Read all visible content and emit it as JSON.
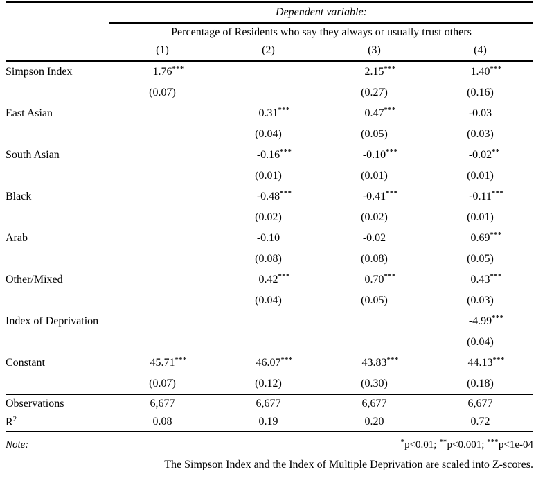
{
  "header": {
    "dependent_variable_label": "Dependent variable:",
    "dependent_variable_description": "Percentage of Residents who say they always or usually trust others",
    "column_numbers": [
      "(1)",
      "(2)",
      "(3)",
      "(4)"
    ]
  },
  "table": {
    "rows": [
      {
        "label": "Simpson Index",
        "cells": [
          {
            "coef": "1.76",
            "stars": "***",
            "se": "(0.07)"
          },
          null,
          {
            "coef": "2.15",
            "stars": "***",
            "se": "(0.27)"
          },
          {
            "coef": "1.40",
            "stars": "***",
            "se": "(0.16)"
          }
        ]
      },
      {
        "label": "East Asian",
        "cells": [
          null,
          {
            "coef": "0.31",
            "stars": "***",
            "se": "(0.04)"
          },
          {
            "coef": "0.47",
            "stars": "***",
            "se": "(0.05)"
          },
          {
            "coef": "-0.03",
            "stars": "",
            "se": "(0.03)"
          }
        ]
      },
      {
        "label": "South Asian",
        "cells": [
          null,
          {
            "coef": "-0.16",
            "stars": "***",
            "se": "(0.01)"
          },
          {
            "coef": "-0.10",
            "stars": "***",
            "se": "(0.01)"
          },
          {
            "coef": "-0.02",
            "stars": "**",
            "se": "(0.01)"
          }
        ]
      },
      {
        "label": "Black",
        "cells": [
          null,
          {
            "coef": "-0.48",
            "stars": "***",
            "se": "(0.02)"
          },
          {
            "coef": "-0.41",
            "stars": "***",
            "se": "(0.02)"
          },
          {
            "coef": "-0.11",
            "stars": "***",
            "se": "(0.01)"
          }
        ]
      },
      {
        "label": "Arab",
        "cells": [
          null,
          {
            "coef": "-0.10",
            "stars": "",
            "se": "(0.08)"
          },
          {
            "coef": "-0.02",
            "stars": "",
            "se": "(0.08)"
          },
          {
            "coef": "0.69",
            "stars": "***",
            "se": "(0.05)"
          }
        ]
      },
      {
        "label": "Other/Mixed",
        "cells": [
          null,
          {
            "coef": "0.42",
            "stars": "***",
            "se": "(0.04)"
          },
          {
            "coef": "0.70",
            "stars": "***",
            "se": "(0.05)"
          },
          {
            "coef": "0.43",
            "stars": "***",
            "se": "(0.03)"
          }
        ]
      },
      {
        "label": "Index of Deprivation",
        "cells": [
          null,
          null,
          null,
          {
            "coef": "-4.99",
            "stars": "***",
            "se": "(0.04)"
          }
        ]
      },
      {
        "label": "Constant",
        "cells": [
          {
            "coef": "45.71",
            "stars": "***",
            "se": "(0.07)"
          },
          {
            "coef": "46.07",
            "stars": "***",
            "se": "(0.12)"
          },
          {
            "coef": "43.83",
            "stars": "***",
            "se": "(0.30)"
          },
          {
            "coef": "44.13",
            "stars": "***",
            "se": "(0.18)"
          }
        ]
      }
    ],
    "summary": [
      {
        "label": "Observations",
        "label_sup": "",
        "values": [
          "6,677",
          "6,677",
          "6,677",
          "6,677"
        ]
      },
      {
        "label": "R",
        "label_sup": "2",
        "values": [
          "0.08",
          "0.19",
          "0.20",
          "0.72"
        ]
      }
    ]
  },
  "notes": {
    "label": "Note:",
    "significance": [
      {
        "stars": "*",
        "text": "p<0.01;"
      },
      {
        "stars": "**",
        "text": "p<0.001;"
      },
      {
        "stars": "***",
        "text": "p<1e-04"
      }
    ],
    "line2": "The Simpson Index and the Index of Multiple Deprivation are scaled into Z-scores."
  },
  "colors": {
    "text": "#000000",
    "background": "#ffffff",
    "rule": "#000000"
  }
}
